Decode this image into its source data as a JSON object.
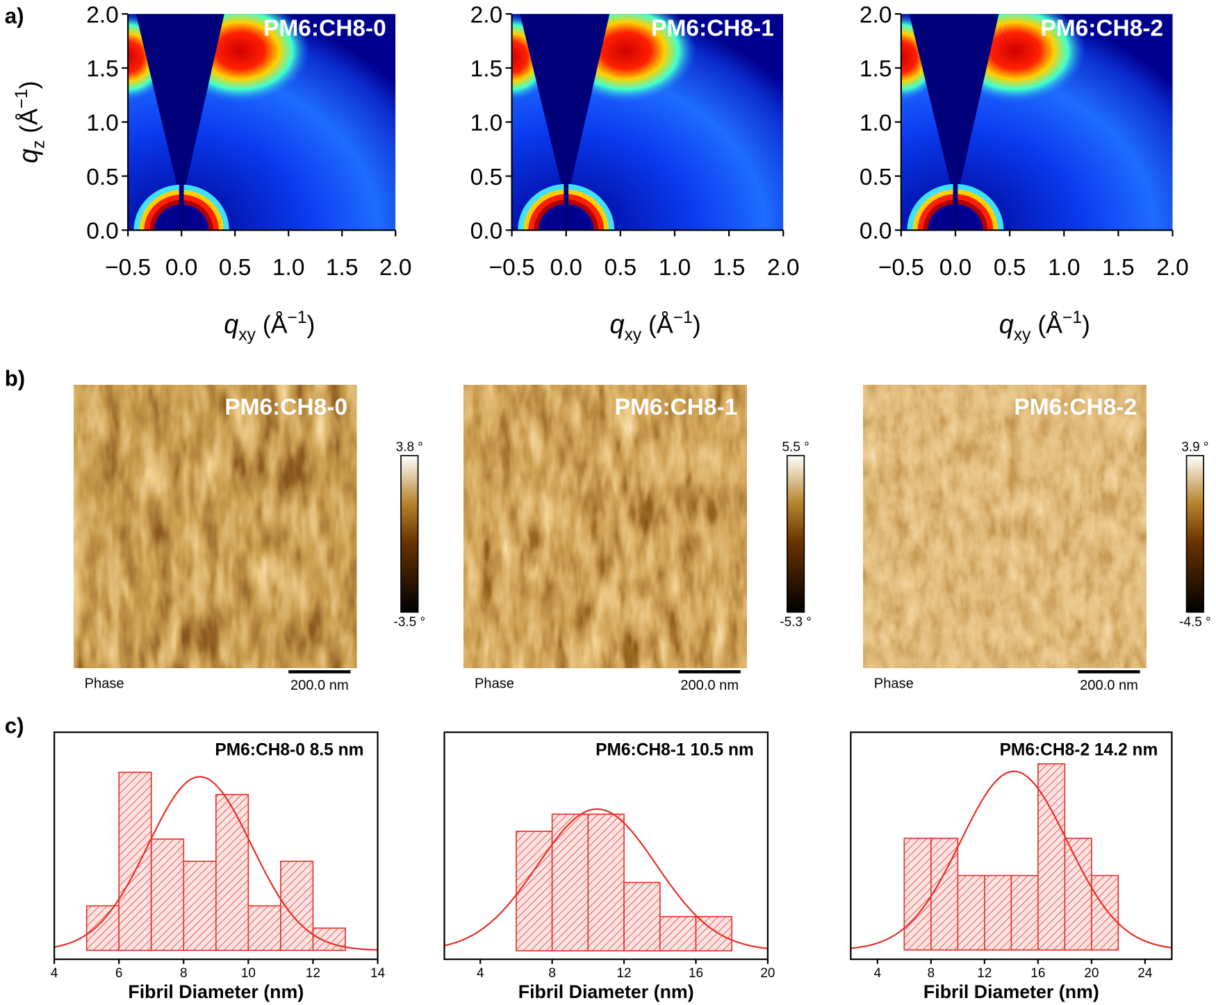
{
  "panel_labels": [
    "a)",
    "b)",
    "c)"
  ],
  "chart_data": [
    {
      "type": "heatmap",
      "title": "PM6:CH8-0",
      "xlim": [
        -0.5,
        2.0
      ],
      "ylim": [
        0,
        2.0
      ],
      "xticks": [
        {
          "value": -0.5,
          "label": "−0.5"
        },
        {
          "value": 0,
          "label": "0.0"
        },
        0.5,
        {
          "value": 1,
          "label": "1.0"
        },
        1.5,
        {
          "value": 2,
          "label": "2.0"
        }
      ],
      "yticks": [
        {
          "value": 0,
          "label": "0.0"
        },
        0.5,
        {
          "value": 1,
          "label": "1.0"
        },
        1.5,
        {
          "value": 2,
          "label": "2.0"
        }
      ],
      "xlabel": [
        "q",
        "xy",
        " (Å",
        "−1",
        ")"
      ],
      "ylabel": [
        "q",
        "z",
        " (Å",
        "−1",
        ")"
      ]
    },
    {
      "type": "heatmap",
      "title": "PM6:CH8-1",
      "xlim": [
        -0.5,
        2.0
      ],
      "ylim": [
        0,
        2.0
      ],
      "xticks": [
        {
          "value": -0.5,
          "label": "−0.5"
        },
        {
          "value": 0,
          "label": "0.0"
        },
        0.5,
        {
          "value": 1,
          "label": "1.0"
        },
        1.5,
        {
          "value": 2,
          "label": "2.0"
        }
      ],
      "yticks": [
        {
          "value": 0,
          "label": "0.0"
        },
        0.5,
        {
          "value": 1,
          "label": "1.0"
        },
        1.5,
        {
          "value": 2,
          "label": "2.0"
        }
      ],
      "xlabel": [
        "q",
        "xy",
        " (Å",
        "−1",
        ")"
      ]
    },
    {
      "type": "heatmap",
      "title": "PM6:CH8-2",
      "xlim": [
        -0.5,
        2.0
      ],
      "ylim": [
        0,
        2.0
      ],
      "xticks": [
        {
          "value": -0.5,
          "label": "−0.5"
        },
        {
          "value": 0,
          "label": "0.0"
        },
        0.5,
        {
          "value": 1,
          "label": "1.0"
        },
        1.5,
        {
          "value": 2,
          "label": "2.0"
        }
      ],
      "yticks": [
        {
          "value": 0,
          "label": "0.0"
        },
        0.5,
        {
          "value": 1,
          "label": "1.0"
        },
        1.5,
        {
          "value": 2,
          "label": "2.0"
        }
      ],
      "xlabel": [
        "q",
        "xy",
        " (Å",
        "−1",
        ")"
      ]
    },
    {
      "type": "image",
      "title": "PM6:CH8-0",
      "channel": "Phase",
      "scale_bar": "200.0 nm",
      "clim": [
        {
          "value": -3.5,
          "label": "-3.5 °"
        },
        {
          "value": 3.8,
          "label": "3.8 °"
        }
      ]
    },
    {
      "type": "image",
      "title": "PM6:CH8-1",
      "channel": "Phase",
      "scale_bar": "200.0 nm",
      "clim": [
        {
          "value": -5.3,
          "label": "-5.3 °"
        },
        {
          "value": 5.5,
          "label": "5.5 °"
        }
      ]
    },
    {
      "type": "image",
      "title": "PM6:CH8-2",
      "channel": "Phase",
      "scale_bar": "200.0 nm",
      "clim": [
        {
          "value": -4.5,
          "label": "-4.5 °"
        },
        {
          "value": 3.9,
          "label": "3.9 °"
        }
      ]
    },
    {
      "type": "histogram",
      "title": "PM6:CH8-0 8.5 nm",
      "xlabel": "Fibril Diameter (nm)",
      "color": "#e8302a",
      "bins": [
        5,
        6,
        7,
        8,
        9,
        10,
        11,
        12,
        13
      ],
      "values": [
        2,
        8,
        5,
        4,
        7,
        2,
        4,
        1
      ],
      "fit": {
        "mean": 8.5,
        "sd": 1.6,
        "peak": 7.8
      },
      "xlim": [
        4,
        14
      ],
      "ylim": [
        -0.4,
        9.8
      ],
      "xticks": [
        4,
        6,
        8,
        10,
        12,
        14
      ]
    },
    {
      "type": "histogram",
      "title": "PM6:CH8-1 10.5 nm",
      "xlabel": "Fibril Diameter (nm)",
      "color": "#e8302a",
      "bins": [
        6,
        8,
        10,
        12,
        14,
        16,
        18
      ],
      "values": [
        7,
        8,
        8,
        4,
        2,
        2
      ],
      "fit": {
        "mean": 10.5,
        "sd": 3.3,
        "peak": 8.3
      },
      "xlim": [
        2,
        20
      ],
      "ylim": [
        -0.5,
        12.8
      ],
      "xticks": [
        4,
        8,
        12,
        16,
        20
      ]
    },
    {
      "type": "histogram",
      "title": "PM6:CH8-2  14.2 nm",
      "xlabel": "Fibril Diameter (nm)",
      "color": "#e8302a",
      "bins": [
        6,
        8,
        10,
        12,
        14,
        16,
        18,
        20,
        22
      ],
      "values": [
        3,
        3,
        2,
        2,
        2,
        5,
        3,
        2
      ],
      "fit": {
        "mean": 14.2,
        "sd": 4.0,
        "peak": 4.8
      },
      "xlim": [
        2,
        26
      ],
      "ylim": [
        -0.25,
        5.85
      ],
      "xticks": [
        4,
        8,
        12,
        16,
        20,
        24
      ]
    }
  ]
}
